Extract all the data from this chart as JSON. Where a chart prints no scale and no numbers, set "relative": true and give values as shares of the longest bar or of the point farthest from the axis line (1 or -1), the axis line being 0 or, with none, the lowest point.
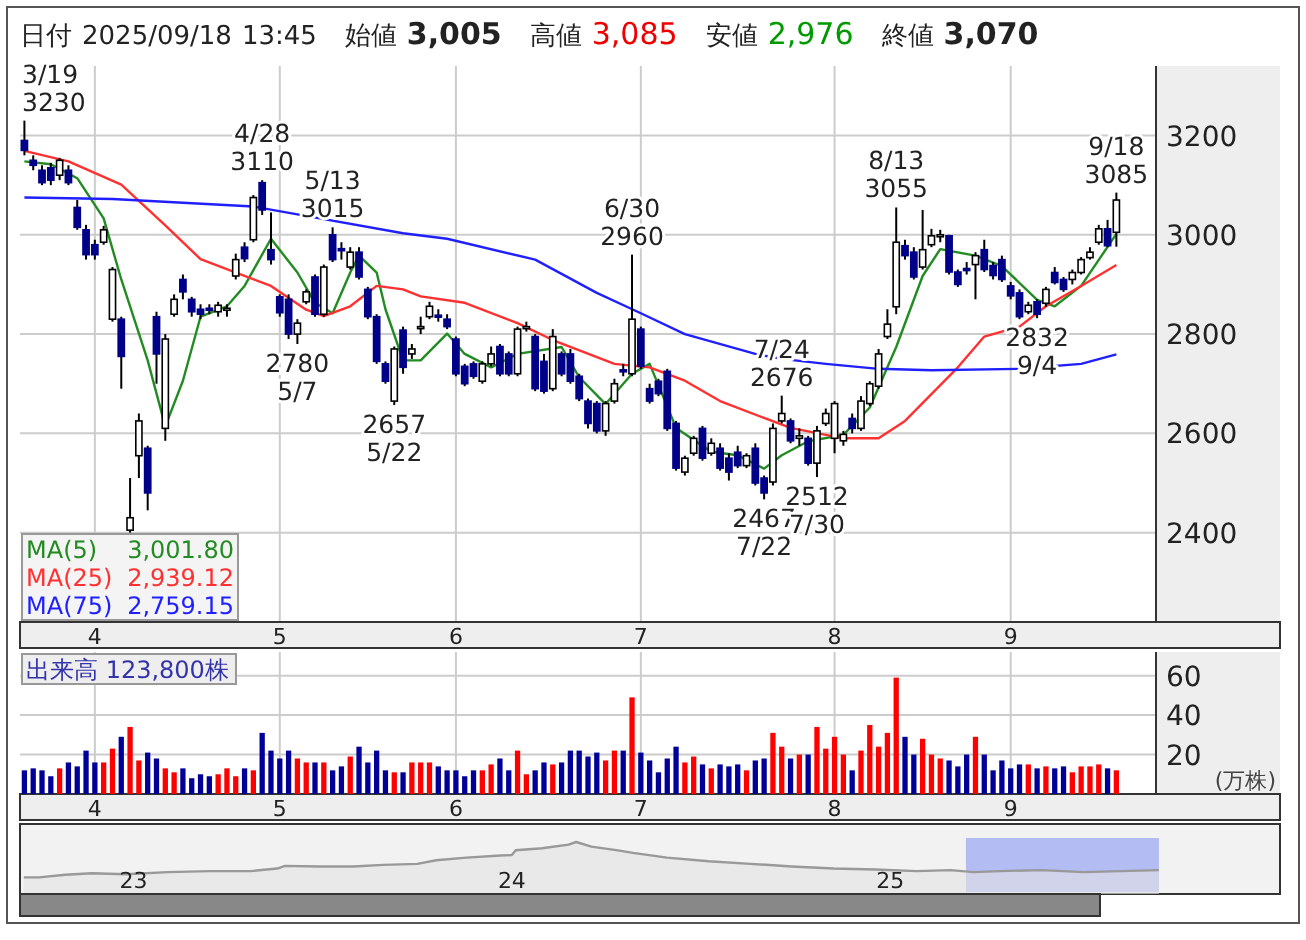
{
  "chart_data": [
    {
      "type": "candlestick",
      "title": "日付 2025/09/18 13:45 始値 3,005 高値 3,085 安値 2,976 終値 3,070",
      "categories": [
        null,
        null,
        null,
        null,
        null,
        null,
        null,
        null,
        "4",
        null,
        null,
        null,
        null,
        null,
        null,
        null,
        null,
        null,
        null,
        null,
        null,
        null,
        null,
        null,
        null,
        null,
        null,
        null,
        null,
        "5",
        null,
        null,
        null,
        null,
        null,
        null,
        null,
        null,
        null,
        null,
        null,
        null,
        null,
        null,
        null,
        null,
        null,
        null,
        null,
        "6",
        null,
        null,
        null,
        null,
        null,
        null,
        null,
        null,
        null,
        null,
        null,
        null,
        null,
        null,
        null,
        null,
        null,
        null,
        null,
        null,
        "7",
        null,
        null,
        null,
        null,
        null,
        null,
        null,
        null,
        null,
        null,
        null,
        null,
        null,
        null,
        null,
        null,
        null,
        null,
        null,
        null,
        null,
        "8",
        null,
        null,
        null,
        null,
        null,
        null,
        null,
        null,
        null,
        null,
        null,
        null,
        null,
        null,
        null,
        null,
        null,
        null,
        null,
        "9",
        null,
        null,
        null,
        null,
        null,
        null,
        null,
        null,
        null,
        null,
        null,
        null
      ],
      "ohlc": [
        [
          3190,
          3230,
          3160,
          3170
        ],
        [
          3150,
          3160,
          3130,
          3140
        ],
        [
          3130,
          3140,
          3100,
          3105
        ],
        [
          3135,
          3145,
          3100,
          3110
        ],
        [
          3120,
          3155,
          3110,
          3150
        ],
        [
          3130,
          3140,
          3100,
          3105
        ],
        [
          3055,
          3070,
          3010,
          3015
        ],
        [
          3010,
          3020,
          2950,
          2960
        ],
        [
          2980,
          2990,
          2950,
          2960
        ],
        [
          2985,
          3018,
          2980,
          3010
        ],
        [
          2830,
          2935,
          2825,
          2930
        ],
        [
          2830,
          2835,
          2690,
          2755
        ],
        [
          2405,
          2510,
          2400,
          2430
        ],
        [
          2555,
          2640,
          2510,
          2625
        ],
        [
          2570,
          2575,
          2445,
          2480
        ],
        [
          2835,
          2845,
          2700,
          2760
        ],
        [
          2610,
          2800,
          2585,
          2790
        ],
        [
          2840,
          2880,
          2835,
          2870
        ],
        [
          2910,
          2920,
          2870,
          2885
        ],
        [
          2870,
          2875,
          2835,
          2845
        ],
        [
          2850,
          2860,
          2830,
          2840
        ],
        [
          2852,
          2860,
          2840,
          2850
        ],
        [
          2845,
          2865,
          2835,
          2858
        ],
        [
          2850,
          2860,
          2835,
          2852
        ],
        [
          2917,
          2962,
          2910,
          2950
        ],
        [
          2975,
          2985,
          2945,
          2952
        ],
        [
          2990,
          3080,
          2985,
          3075
        ],
        [
          3105,
          3110,
          3040,
          3050
        ],
        [
          2970,
          3045,
          2940,
          2950
        ],
        [
          2875,
          2880,
          2835,
          2843
        ],
        [
          2870,
          2880,
          2790,
          2800
        ],
        [
          2800,
          2830,
          2780,
          2822
        ],
        [
          2865,
          2890,
          2860,
          2885
        ],
        [
          2915,
          2920,
          2835,
          2840
        ],
        [
          2840,
          2940,
          2835,
          2935
        ],
        [
          3000,
          3015,
          2945,
          2950
        ],
        [
          2972,
          2985,
          2950,
          2970
        ],
        [
          2935,
          2975,
          2930,
          2965
        ],
        [
          2965,
          2975,
          2910,
          2915
        ],
        [
          2890,
          2895,
          2830,
          2835
        ],
        [
          2835,
          2840,
          2740,
          2745
        ],
        [
          2740,
          2745,
          2700,
          2705
        ],
        [
          2665,
          2775,
          2657,
          2770
        ],
        [
          2808,
          2815,
          2720,
          2733
        ],
        [
          2760,
          2780,
          2750,
          2770
        ],
        [
          2815,
          2835,
          2800,
          2815
        ],
        [
          2835,
          2865,
          2830,
          2856
        ],
        [
          2838,
          2850,
          2825,
          2835
        ],
        [
          2830,
          2840,
          2810,
          2815
        ],
        [
          2790,
          2795,
          2715,
          2720
        ],
        [
          2735,
          2740,
          2695,
          2700
        ],
        [
          2740,
          2745,
          2710,
          2715
        ],
        [
          2705,
          2745,
          2700,
          2740
        ],
        [
          2740,
          2775,
          2735,
          2760
        ],
        [
          2775,
          2780,
          2715,
          2720
        ],
        [
          2760,
          2765,
          2715,
          2720
        ],
        [
          2720,
          2815,
          2715,
          2810
        ],
        [
          2815,
          2825,
          2805,
          2815
        ],
        [
          2795,
          2800,
          2685,
          2690
        ],
        [
          2745,
          2760,
          2680,
          2685
        ],
        [
          2690,
          2810,
          2685,
          2795
        ],
        [
          2760,
          2765,
          2715,
          2720
        ],
        [
          2760,
          2770,
          2700,
          2705
        ],
        [
          2715,
          2720,
          2665,
          2670
        ],
        [
          2665,
          2670,
          2610,
          2620
        ],
        [
          2660,
          2665,
          2600,
          2605
        ],
        [
          2605,
          2665,
          2595,
          2660
        ],
        [
          2665,
          2710,
          2660,
          2700
        ],
        [
          2728,
          2740,
          2715,
          2726
        ],
        [
          2720,
          2960,
          2715,
          2830
        ],
        [
          2810,
          2815,
          2730,
          2735
        ],
        [
          2690,
          2700,
          2660,
          2665
        ],
        [
          2705,
          2710,
          2675,
          2680
        ],
        [
          2725,
          2730,
          2605,
          2610
        ],
        [
          2620,
          2625,
          2525,
          2530
        ],
        [
          2522,
          2555,
          2515,
          2550
        ],
        [
          2560,
          2595,
          2555,
          2590
        ],
        [
          2610,
          2615,
          2545,
          2550
        ],
        [
          2560,
          2590,
          2555,
          2580
        ],
        [
          2570,
          2580,
          2525,
          2530
        ],
        [
          2550,
          2560,
          2505,
          2522
        ],
        [
          2562,
          2575,
          2530,
          2535
        ],
        [
          2535,
          2560,
          2530,
          2555
        ],
        [
          2570,
          2580,
          2495,
          2500
        ],
        [
          2510,
          2515,
          2467,
          2480
        ],
        [
          2502,
          2620,
          2495,
          2610
        ],
        [
          2625,
          2676,
          2620,
          2640
        ],
        [
          2625,
          2630,
          2580,
          2585
        ],
        [
          2590,
          2610,
          2575,
          2595
        ],
        [
          2590,
          2595,
          2535,
          2540
        ],
        [
          2540,
          2615,
          2512,
          2605
        ],
        [
          2620,
          2650,
          2615,
          2640
        ],
        [
          2590,
          2665,
          2560,
          2660
        ],
        [
          2585,
          2605,
          2575,
          2598
        ],
        [
          2630,
          2640,
          2600,
          2610
        ],
        [
          2610,
          2675,
          2605,
          2665
        ],
        [
          2660,
          2705,
          2655,
          2700
        ],
        [
          2695,
          2770,
          2690,
          2760
        ],
        [
          2795,
          2850,
          2790,
          2820
        ],
        [
          2855,
          3055,
          2840,
          2985
        ],
        [
          2978,
          2990,
          2950,
          2958
        ],
        [
          2965,
          2975,
          2910,
          2915
        ],
        [
          2935,
          3050,
          2930,
          2970
        ],
        [
          2980,
          3012,
          2975,
          2998
        ],
        [
          2998,
          3010,
          2985,
          3000
        ],
        [
          2998,
          3000,
          2920,
          2925
        ],
        [
          2925,
          2930,
          2895,
          2900
        ],
        [
          2932,
          2945,
          2920,
          2930
        ],
        [
          2940,
          2965,
          2870,
          2958
        ],
        [
          2970,
          2990,
          2925,
          2930
        ],
        [
          2938,
          2945,
          2910,
          2918
        ],
        [
          2950,
          2958,
          2905,
          2910
        ],
        [
          2897,
          2905,
          2870,
          2877
        ],
        [
          2883,
          2890,
          2830,
          2835
        ],
        [
          2845,
          2865,
          2840,
          2858
        ],
        [
          2865,
          2870,
          2832,
          2840
        ],
        [
          2862,
          2895,
          2855,
          2890
        ],
        [
          2924,
          2935,
          2900,
          2904
        ],
        [
          2910,
          2915,
          2885,
          2890
        ],
        [
          2910,
          2930,
          2900,
          2924
        ],
        [
          2924,
          2955,
          2920,
          2950
        ],
        [
          2954,
          2975,
          2950,
          2965
        ],
        [
          2985,
          3020,
          2980,
          3012
        ],
        [
          3012,
          3030,
          2975,
          2978
        ],
        [
          3005,
          3085,
          2976,
          3070
        ]
      ],
      "series": [
        {
          "name": "MA(5)",
          "type": "line",
          "color": "#228b22",
          "values": [
            3148,
            null,
            null,
            3142,
            null,
            null,
            3114,
            null,
            null,
            3033,
            null,
            2910,
            null,
            null,
            2747,
            null,
            2614,
            null,
            2706,
            null,
            2835,
            null,
            null,
            2856,
            null,
            2897,
            null,
            null,
            2992,
            null,
            null,
            2924,
            null,
            2863,
            null,
            2842,
            null,
            2924,
            2958,
            null,
            2924,
            2850,
            null,
            2747,
            null,
            2747,
            null,
            null,
            2801,
            null,
            2760,
            null,
            null,
            2733,
            null,
            null,
            2760,
            null,
            null,
            null,
            null,
            2774,
            null,
            2713,
            null,
            null,
            2659,
            null,
            null,
            2720,
            null,
            2740,
            null,
            null,
            2611,
            null,
            null,
            null,
            2563,
            null,
            null,
            2556,
            null,
            null,
            2529,
            null,
            2556,
            null,
            null,
            2584,
            null,
            null,
            null,
            2597,
            null,
            null,
            2652,
            null,
            null,
            2774,
            null,
            null,
            2917,
            null,
            2971,
            null,
            null,
            null,
            2958,
            null,
            null,
            2937,
            null,
            null,
            null,
            2869,
            null,
            2856,
            null,
            null,
            2897,
            null,
            null,
            null,
            3002
          ]
        },
        {
          "name": "MA(25)",
          "type": "line",
          "color": "#ff3030",
          "values": [
            3169,
            null,
            null,
            null,
            null,
            3148,
            null,
            null,
            null,
            null,
            null,
            3101,
            null,
            null,
            null,
            null,
            3019,
            null,
            null,
            null,
            2951,
            null,
            null,
            null,
            null,
            null,
            null,
            null,
            2897,
            null,
            null,
            null,
            2849,
            null,
            2836,
            null,
            null,
            2856,
            null,
            null,
            2897,
            null,
            null,
            2890,
            null,
            2876,
            null,
            null,
            null,
            null,
            2863,
            null,
            null,
            null,
            null,
            null,
            2822,
            null,
            null,
            null,
            2788,
            null,
            null,
            null,
            null,
            null,
            null,
            2740,
            null,
            null,
            null,
            2733,
            null,
            null,
            null,
            2706,
            null,
            null,
            null,
            2665,
            null,
            null,
            null,
            null,
            2631,
            null,
            null,
            2611,
            null,
            null,
            null,
            null,
            null,
            2590,
            null,
            null,
            null,
            2590,
            null,
            null,
            2625,
            null,
            null,
            null,
            null,
            null,
            2733,
            null,
            null,
            2795,
            null,
            null,
            null,
            2815,
            null,
            null,
            2856,
            null,
            null,
            null,
            2897,
            null,
            null,
            null,
            2939
          ]
        },
        {
          "name": "MA(75)",
          "type": "line",
          "color": "#2020ff",
          "values": [
            3075,
            null,
            null,
            null,
            null,
            null,
            null,
            null,
            null,
            null,
            3072,
            null,
            null,
            null,
            null,
            null,
            null,
            null,
            null,
            null,
            null,
            null,
            null,
            null,
            null,
            null,
            3057,
            null,
            null,
            null,
            null,
            null,
            null,
            null,
            null,
            null,
            null,
            null,
            null,
            null,
            null,
            null,
            null,
            3003,
            null,
            null,
            null,
            null,
            2992,
            null,
            null,
            null,
            null,
            null,
            null,
            null,
            null,
            null,
            2950,
            null,
            null,
            null,
            null,
            null,
            null,
            2883,
            null,
            null,
            null,
            null,
            2842,
            null,
            null,
            null,
            null,
            2800,
            null,
            null,
            null,
            null,
            null,
            null,
            null,
            2760,
            null,
            null,
            2750,
            null,
            null,
            null,
            null,
            2740,
            null,
            null,
            null,
            null,
            null,
            2730,
            null,
            null,
            null,
            null,
            null,
            2727,
            null,
            null,
            null,
            null,
            null,
            null,
            null,
            null,
            null,
            2730,
            null,
            null,
            null,
            null,
            null,
            null,
            2740,
            null,
            null,
            null,
            2759
          ]
        }
      ],
      "value_labels": [
        "3/19 3230",
        null,
        null,
        null,
        null,
        null,
        null,
        null,
        null,
        null,
        null,
        null,
        null,
        null,
        null,
        null,
        null,
        null,
        null,
        null,
        null,
        null,
        null,
        null,
        null,
        null,
        null,
        "4/28 3110",
        null,
        null,
        null,
        "2780 5/7",
        null,
        null,
        null,
        "5/13 3015",
        null,
        null,
        null,
        null,
        null,
        null,
        "2657 5/22",
        null,
        null,
        null,
        null,
        null,
        null,
        null,
        null,
        null,
        null,
        null,
        null,
        null,
        null,
        null,
        null,
        null,
        null,
        null,
        null,
        null,
        null,
        null,
        null,
        null,
        null,
        "6/30 2960",
        null,
        null,
        null,
        null,
        null,
        null,
        null,
        null,
        null,
        null,
        null,
        null,
        null,
        null,
        "2467 7/22",
        null,
        "7/24 2676",
        null,
        null,
        null,
        "2512 7/30",
        null,
        null,
        null,
        null,
        null,
        null,
        null,
        null,
        "8/13 3055",
        null,
        null,
        null,
        null,
        null,
        null,
        null,
        null,
        null,
        null,
        null,
        null,
        null,
        null,
        null,
        "2832 9/4",
        null,
        null,
        null,
        null,
        null,
        null,
        null,
        null,
        "9/18 3085"
      ],
      "annotations": [
        "3,001.80",
        "2,939.12",
        "2,759.15"
      ],
      "ylim": [
        2220,
        3340
      ],
      "yticks": [
        2400,
        2600,
        2800,
        3000,
        3200
      ],
      "grid": true,
      "legend": "bottom left"
    },
    {
      "type": "bar",
      "title": "出来高 123,800株",
      "ylabel": "(万株)",
      "categories": [
        null,
        null,
        null,
        null,
        null,
        null,
        null,
        null,
        "4",
        null,
        null,
        null,
        null,
        null,
        null,
        null,
        null,
        null,
        null,
        null,
        null,
        null,
        null,
        null,
        null,
        null,
        null,
        null,
        null,
        "5",
        null,
        null,
        null,
        null,
        null,
        null,
        null,
        null,
        null,
        null,
        null,
        null,
        null,
        null,
        null,
        null,
        null,
        null,
        null,
        "6",
        null,
        null,
        null,
        null,
        null,
        null,
        null,
        null,
        null,
        null,
        null,
        null,
        null,
        null,
        null,
        null,
        null,
        null,
        null,
        null,
        "7",
        null,
        null,
        null,
        null,
        null,
        null,
        null,
        null,
        null,
        null,
        null,
        null,
        null,
        null,
        null,
        null,
        null,
        null,
        null,
        null,
        null,
        "8",
        null,
        null,
        null,
        null,
        null,
        null,
        null,
        null,
        null,
        null,
        null,
        null,
        null,
        null,
        null,
        null,
        null,
        null,
        null,
        "9",
        null,
        null,
        null,
        null,
        null,
        null,
        null,
        null,
        null,
        null,
        null,
        null
      ],
      "values": [
        12,
        13,
        12,
        9,
        13,
        16,
        14,
        22,
        16,
        16,
        23,
        29,
        34,
        17,
        21,
        18,
        13,
        11,
        13,
        8,
        10,
        9,
        10,
        13,
        9,
        13,
        12,
        31,
        22,
        18,
        22,
        18,
        16,
        16,
        16,
        12,
        14,
        19,
        24,
        16,
        22,
        12,
        11,
        11,
        16,
        16,
        16,
        14,
        12,
        12,
        9,
        12,
        12,
        15,
        18,
        12,
        22,
        10,
        12,
        16,
        15,
        16,
        22,
        22,
        19,
        21,
        17,
        22,
        22,
        49,
        21,
        17,
        11,
        18,
        24,
        16,
        19,
        15,
        13,
        15,
        14,
        15,
        12,
        17,
        18,
        31,
        24,
        18,
        20,
        20,
        34,
        23,
        29,
        20,
        12,
        22,
        35,
        24,
        31,
        59,
        29,
        20,
        28,
        20,
        18,
        17,
        14,
        20,
        29,
        20,
        12,
        17,
        13,
        15,
        15,
        13,
        14,
        13,
        14,
        11,
        14,
        14,
        15,
        13,
        12
      ],
      "colors": [
        "#000099",
        "#000099",
        "#000099",
        "#000099",
        "#ff0000",
        "#000099",
        "#000099",
        "#000099",
        "#000099",
        "#ff0000",
        "#ff0000",
        "#000099",
        "#ff0000",
        "#ff0000",
        "#000099",
        "#000099",
        "#ff0000",
        "#ff0000",
        "#000099",
        "#000099",
        "#000099",
        "#000099",
        "#ff0000",
        "#ff0000",
        "#ff0000",
        "#000099",
        "#ff0000",
        "#000099",
        "#000099",
        "#000099",
        "#000099",
        "#ff0000",
        "#ff0000",
        "#000099",
        "#ff0000",
        "#000099",
        "#000099",
        "#ff0000",
        "#000099",
        "#000099",
        "#000099",
        "#000099",
        "#ff0000",
        "#000099",
        "#ff0000",
        "#ff0000",
        "#ff0000",
        "#000099",
        "#000099",
        "#000099",
        "#000099",
        "#000099",
        "#ff0000",
        "#ff0000",
        "#000099",
        "#000099",
        "#ff0000",
        "#ff0000",
        "#000099",
        "#000099",
        "#ff0000",
        "#000099",
        "#000099",
        "#000099",
        "#000099",
        "#000099",
        "#ff0000",
        "#ff0000",
        "#000099",
        "#ff0000",
        "#000099",
        "#000099",
        "#000099",
        "#000099",
        "#000099",
        "#ff0000",
        "#ff0000",
        "#000099",
        "#ff0000",
        "#000099",
        "#000099",
        "#000099",
        "#ff0000",
        "#000099",
        "#000099",
        "#ff0000",
        "#ff0000",
        "#000099",
        "#ff0000",
        "#000099",
        "#ff0000",
        "#ff0000",
        "#ff0000",
        "#ff0000",
        "#000099",
        "#ff0000",
        "#ff0000",
        "#ff0000",
        "#ff0000",
        "#ff0000",
        "#000099",
        "#000099",
        "#ff0000",
        "#ff0000",
        "#ff0000",
        "#000099",
        "#000099",
        "#000099",
        "#ff0000",
        "#000099",
        "#000099",
        "#000099",
        "#000099",
        "#000099",
        "#ff0000",
        "#000099",
        "#ff0000",
        "#000099",
        "#000099",
        "#ff0000",
        "#ff0000",
        "#ff0000",
        "#ff0000",
        "#000099",
        "#ff0000"
      ],
      "ylim": [
        0,
        72
      ],
      "yticks": [
        20,
        40,
        60
      ],
      "grid": true
    },
    {
      "type": "area",
      "relative": true,
      "color": "#999999",
      "x": [
        2022.71,
        2022.75,
        2022.82,
        2022.89,
        2022.98,
        2023.09,
        2023.2,
        2023.31,
        2023.38,
        2023.4,
        2023.49,
        2023.58,
        2023.66,
        2023.75,
        2023.8,
        2023.88,
        2023.97,
        2024.0,
        2024.01,
        2024.08,
        2024.15,
        2024.17,
        2024.21,
        2024.28,
        2024.32,
        2024.41,
        2024.52,
        2024.63,
        2024.74,
        2024.85,
        2024.96,
        2025.07,
        2025.16,
        2025.22,
        2025.29,
        2025.4,
        2025.51,
        2025.71
      ],
      "values": [
        0.32,
        0.32,
        0.37,
        0.4,
        0.38,
        0.42,
        0.44,
        0.44,
        0.49,
        0.54,
        0.53,
        0.53,
        0.56,
        0.58,
        0.65,
        0.7,
        0.74,
        0.75,
        0.84,
        0.88,
        0.95,
        1,
        0.91,
        0.84,
        0.79,
        0.7,
        0.63,
        0.58,
        0.53,
        0.49,
        0.47,
        0.44,
        0.46,
        0.42,
        0.44,
        0.46,
        0.42,
        0.46
      ],
      "xlim": [
        2022.7,
        2026.03
      ],
      "xticks": [
        {
          "value": 2023,
          "label": "23"
        },
        {
          "value": 2024,
          "label": "24"
        },
        {
          "value": 2025,
          "label": "25"
        }
      ],
      "bands": [
        {
          "axis": "x",
          "from": 2025.2,
          "to": 2025.71,
          "color": "#b4bcf4"
        }
      ]
    }
  ]
}
